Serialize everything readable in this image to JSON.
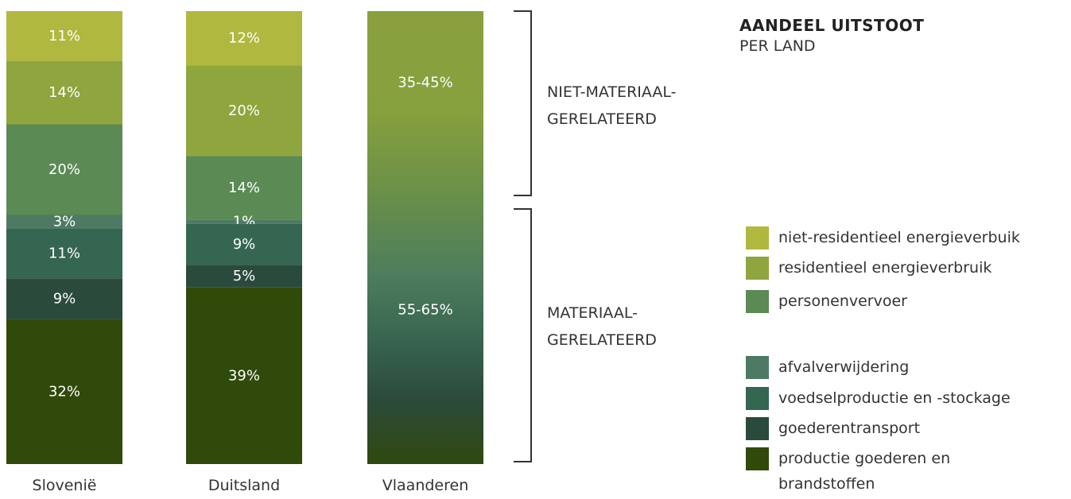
{
  "title": "AANDEEL UITSTOOT",
  "subtitle": "PER LAND",
  "groups": {
    "non_material": "NIET-MATERIAAL-\nGERELATEERD",
    "material": "MATERIAAL-\nGERELATEERD"
  },
  "legend": [
    {
      "label": "niet-residentieel energieverbuik",
      "color": "#b0b83f"
    },
    {
      "label": "residentieel energieverbruik",
      "color": "#8fa53e"
    },
    {
      "label": "personenvervoer",
      "color": "#5b8a55"
    },
    {
      "label": "afvalverwijdering",
      "color": "#4e7a63"
    },
    {
      "label": "voedselproductie en -stockage",
      "color": "#356651"
    },
    {
      "label": "goederentransport",
      "color": "#2a4a3c"
    },
    {
      "label": "productie goederen en\nbrandstoffen",
      "color": "#304a0a"
    }
  ],
  "chart_data": {
    "type": "bar",
    "stacked": true,
    "unit": "%",
    "categories": [
      "Slovenië",
      "Duitsland",
      "Vlaanderen"
    ],
    "series": [
      {
        "name": "niet-residentieel energieverbuik",
        "values": [
          11,
          12,
          null
        ],
        "labels": [
          "11%",
          "12%",
          ""
        ]
      },
      {
        "name": "residentieel energieverbruik",
        "values": [
          14,
          20,
          null
        ],
        "labels": [
          "14%",
          "20%",
          ""
        ]
      },
      {
        "name": "personenvervoer",
        "values": [
          20,
          14,
          null
        ],
        "labels": [
          "20%",
          "14%",
          ""
        ]
      },
      {
        "name": "afvalverwijdering",
        "values": [
          3,
          1,
          null
        ],
        "labels": [
          "3%",
          "1%",
          ""
        ]
      },
      {
        "name": "voedselproductie en -stockage",
        "values": [
          11,
          9,
          null
        ],
        "labels": [
          "11%",
          "9%",
          ""
        ]
      },
      {
        "name": "goederentransport",
        "values": [
          9,
          5,
          null
        ],
        "labels": [
          "9%",
          "5%",
          ""
        ]
      },
      {
        "name": "productie goederen en brandstoffen",
        "values": [
          32,
          39,
          null
        ],
        "labels": [
          "32%",
          "39%",
          ""
        ]
      }
    ],
    "ranges": {
      "category": "Vlaanderen",
      "non_material": {
        "range": [
          35,
          45
        ],
        "label": "35-45%"
      },
      "material": {
        "range": [
          55,
          65
        ],
        "label": "55-65%"
      }
    }
  }
}
